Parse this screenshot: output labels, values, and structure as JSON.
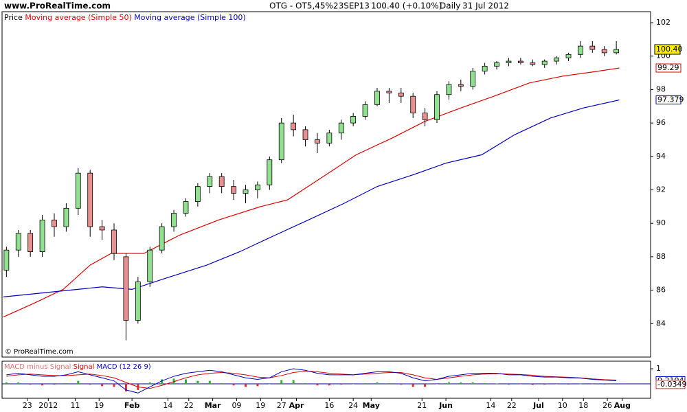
{
  "header": {
    "site": "www.ProRealTime.com",
    "title": "OTG - OT5,45%23SEP13",
    "quote": "100.40 (+0.10%)",
    "period": "Daily",
    "date": "31 Jul 2012"
  },
  "chart_data": [
    {
      "type": "candlestick",
      "name": "Price",
      "x": [
        1,
        5,
        9,
        13,
        17,
        21,
        25,
        29,
        33,
        37,
        41,
        45,
        49,
        53,
        57,
        61,
        65,
        69,
        73,
        77,
        81,
        85,
        89,
        93,
        97,
        101,
        105,
        109,
        113,
        117,
        121,
        125,
        129,
        133,
        137,
        141,
        145,
        149,
        153,
        157,
        161,
        165,
        169,
        173,
        177,
        181,
        185,
        189,
        193,
        197,
        201,
        205
      ],
      "open": [
        87.2,
        88.4,
        89.4,
        88.3,
        90.2,
        89.8,
        90.9,
        93.0,
        89.8,
        89.6,
        88.0,
        84.2,
        86.5,
        88.4,
        89.8,
        90.6,
        91.3,
        92.2,
        92.8,
        92.2,
        91.8,
        92.0,
        92.3,
        93.8,
        96.0,
        95.6,
        95.0,
        94.8,
        95.4,
        96.0,
        96.4,
        97.1,
        97.9,
        97.8,
        97.6,
        96.6,
        96.2,
        97.7,
        98.3,
        98.2,
        99.1,
        99.4,
        99.6,
        99.7,
        99.6,
        99.5,
        99.7,
        99.9,
        100.1,
        100.6,
        100.4,
        100.2
      ],
      "high": [
        88.6,
        89.6,
        89.6,
        90.5,
        90.6,
        91.2,
        93.3,
        93.2,
        90.2,
        90.0,
        88.2,
        86.8,
        88.6,
        90.0,
        90.8,
        91.5,
        92.4,
        93.0,
        93.0,
        92.6,
        92.3,
        92.5,
        94.0,
        96.3,
        96.5,
        95.8,
        95.4,
        95.6,
        96.2,
        96.6,
        97.3,
        98.1,
        98.1,
        98.1,
        97.8,
        96.9,
        97.9,
        98.5,
        98.6,
        99.3,
        99.6,
        99.7,
        99.9,
        99.9,
        99.8,
        99.8,
        100.0,
        100.2,
        100.9,
        100.9,
        100.6,
        100.9
      ],
      "low": [
        86.8,
        88.0,
        88.0,
        88.0,
        89.2,
        89.5,
        90.5,
        89.2,
        89.0,
        87.8,
        83.0,
        84.0,
        86.2,
        88.2,
        89.5,
        90.4,
        91.0,
        91.8,
        91.8,
        91.4,
        91.2,
        91.5,
        92.0,
        93.6,
        95.2,
        94.6,
        94.2,
        94.6,
        95.0,
        95.8,
        96.2,
        97.0,
        97.2,
        97.2,
        96.3,
        95.8,
        96.0,
        97.4,
        97.9,
        98.0,
        98.9,
        99.2,
        99.4,
        99.5,
        99.4,
        99.3,
        99.5,
        99.7,
        99.9,
        100.2,
        100.0,
        100.1
      ],
      "close": [
        88.4,
        89.4,
        88.3,
        90.2,
        89.8,
        90.9,
        93.0,
        89.8,
        89.6,
        88.2,
        84.2,
        86.5,
        88.4,
        89.8,
        90.6,
        91.3,
        92.2,
        92.8,
        92.2,
        91.8,
        92.0,
        92.3,
        93.8,
        96.0,
        95.6,
        95.0,
        94.8,
        95.4,
        96.0,
        96.4,
        97.1,
        97.9,
        97.8,
        97.6,
        96.6,
        96.2,
        97.7,
        98.3,
        98.2,
        99.1,
        99.4,
        99.6,
        99.7,
        99.6,
        99.5,
        99.7,
        99.9,
        100.1,
        100.6,
        100.4,
        100.2,
        100.4
      ],
      "last_label": "100.40",
      "up_color": "#90e090",
      "down_color": "#e89090",
      "lines": [
        {
          "name": "Moving average (Simple 50)",
          "color": "#e00000",
          "x": [
            0,
            10,
            20,
            29,
            36,
            47,
            59,
            72,
            86,
            95,
            107,
            118,
            130,
            141,
            153,
            164,
            176,
            187,
            199,
            206
          ],
          "values": [
            84.4,
            85.2,
            86.05,
            87.5,
            88.2,
            88.2,
            89.3,
            90.2,
            91.0,
            91.4,
            92.8,
            94.1,
            95.1,
            96.1,
            96.9,
            97.6,
            98.4,
            98.8,
            99.1,
            99.29
          ]
        },
        {
          "name": "Moving average (Simple 100)",
          "color": "#0000c0",
          "x": [
            0,
            33,
            43,
            54,
            68,
            79,
            91,
            102,
            114,
            125,
            137,
            148,
            160,
            171,
            183,
            194,
            206
          ],
          "values": [
            85.6,
            86.2,
            86.05,
            86.7,
            87.5,
            88.3,
            89.3,
            90.2,
            91.2,
            92.2,
            92.9,
            93.6,
            94.1,
            95.3,
            96.3,
            96.9,
            97.379
          ]
        }
      ],
      "xlim": [
        0,
        216
      ],
      "ylim": [
        82,
        102.7
      ],
      "yticks": [
        84,
        86,
        88,
        90,
        92,
        94,
        96,
        98,
        100,
        102
      ],
      "xticks": [
        {
          "value": 8,
          "label": "23"
        },
        {
          "value": 15,
          "label": "2012"
        },
        {
          "value": 24,
          "label": "11"
        },
        {
          "value": 32,
          "label": "19"
        },
        {
          "value": 43,
          "label": "Feb"
        },
        {
          "value": 55,
          "label": "14"
        },
        {
          "value": 62,
          "label": "22"
        },
        {
          "value": 70,
          "label": "Mar"
        },
        {
          "value": 78,
          "label": "09"
        },
        {
          "value": 86,
          "label": "19"
        },
        {
          "value": 93,
          "label": "27"
        },
        {
          "value": 98,
          "label": "Apr"
        },
        {
          "value": 109,
          "label": "16"
        },
        {
          "value": 117,
          "label": "24"
        },
        {
          "value": 123,
          "label": "May"
        },
        {
          "value": 140,
          "label": "21"
        },
        {
          "value": 148,
          "label": "Jun"
        },
        {
          "value": 163,
          "label": "14"
        },
        {
          "value": 170,
          "label": "22"
        },
        {
          "value": 179,
          "label": "Jul"
        },
        {
          "value": 187,
          "label": "10"
        },
        {
          "value": 194,
          "label": "18"
        },
        {
          "value": 202,
          "label": "26"
        },
        {
          "value": 207,
          "label": "Aug"
        }
      ],
      "copyright": "© ProRealTime.com"
    },
    {
      "type": "macd",
      "params": "(12 26 9)",
      "series": [
        {
          "name": "MACD minus Signal",
          "color": "#e07070",
          "up_color": "#30b030",
          "down_color": "#e03030",
          "values": [
            0.1,
            0.1,
            -0.05,
            -0.1,
            -0.05,
            0.05,
            0.2,
            -0.05,
            -0.15,
            -0.2,
            -0.5,
            -0.4,
            0.1,
            0.3,
            0.35,
            0.3,
            0.2,
            0.2,
            0.05,
            -0.1,
            -0.2,
            -0.15,
            0,
            0.25,
            0.25,
            0.05,
            -0.1,
            -0.1,
            -0.05,
            0,
            0.05,
            0.1,
            0.05,
            -0.05,
            -0.2,
            -0.2,
            0,
            0.1,
            0.1,
            0.1,
            0.05,
            0.02,
            -0.05,
            -0.02,
            -0.07,
            -0.05,
            -0.02,
            -0.04,
            0.01,
            -0.02,
            -0.04,
            -0.0349
          ]
        },
        {
          "name": "Signal",
          "color": "#e00000",
          "values": [
            0.5,
            0.6,
            0.65,
            0.6,
            0.55,
            0.55,
            0.6,
            0.65,
            0.55,
            0.4,
            0.1,
            -0.2,
            -0.3,
            -0.1,
            0.15,
            0.4,
            0.6,
            0.7,
            0.75,
            0.7,
            0.6,
            0.45,
            0.4,
            0.55,
            0.75,
            0.85,
            0.8,
            0.7,
            0.65,
            0.6,
            0.65,
            0.7,
            0.75,
            0.75,
            0.6,
            0.4,
            0.3,
            0.4,
            0.5,
            0.6,
            0.65,
            0.68,
            0.65,
            0.62,
            0.57,
            0.5,
            0.47,
            0.44,
            0.4,
            0.33,
            0.28,
            0.25
          ]
        },
        {
          "name": "MACD",
          "color": "#0000c0",
          "values": [
            0.6,
            0.7,
            0.6,
            0.5,
            0.5,
            0.6,
            0.8,
            0.6,
            0.4,
            0.2,
            -0.4,
            -0.6,
            -0.2,
            0.2,
            0.5,
            0.7,
            0.8,
            0.9,
            0.8,
            0.6,
            0.4,
            0.3,
            0.4,
            0.8,
            1.0,
            0.9,
            0.7,
            0.6,
            0.6,
            0.6,
            0.7,
            0.8,
            0.8,
            0.7,
            0.4,
            0.2,
            0.3,
            0.5,
            0.6,
            0.7,
            0.7,
            0.7,
            0.6,
            0.6,
            0.5,
            0.45,
            0.45,
            0.4,
            0.38,
            0.3,
            0.25,
            0.2104
          ]
        }
      ],
      "ylim": [
        -0.95,
        1.5
      ],
      "yticks": [
        1
      ]
    }
  ]
}
